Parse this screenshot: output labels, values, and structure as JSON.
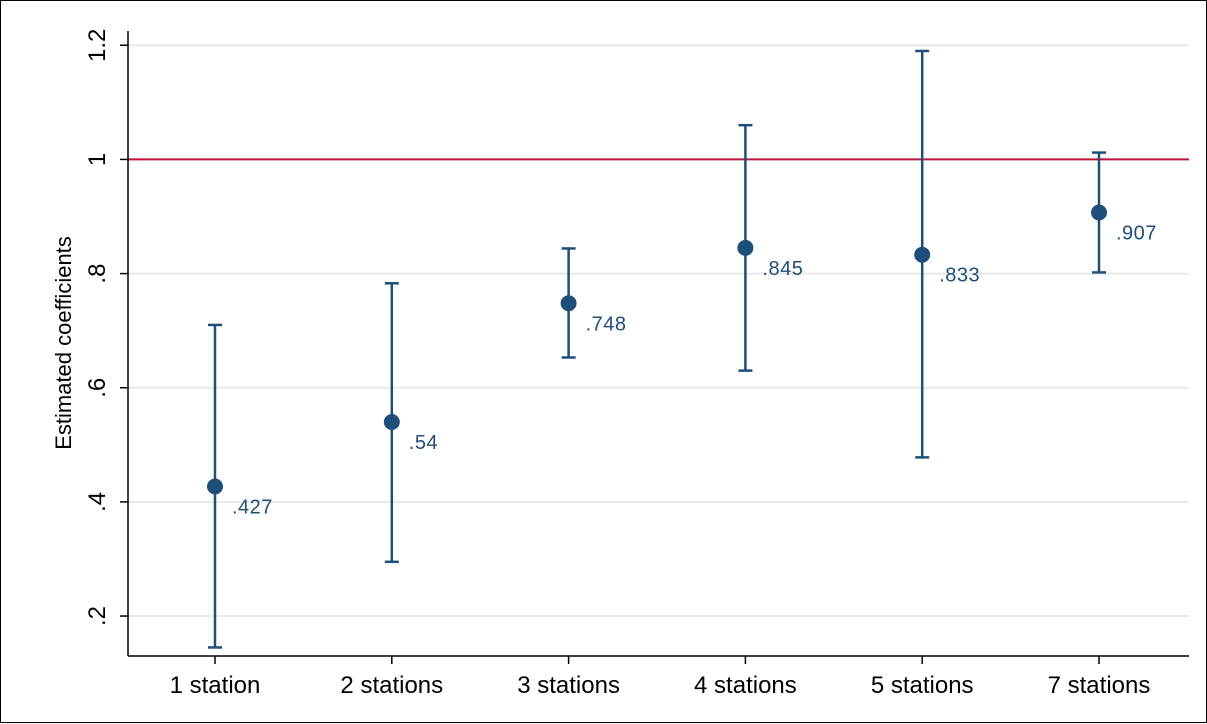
{
  "chart_data": {
    "type": "scatter",
    "title": "",
    "xlabel": "",
    "ylabel": "Estimated coefficients",
    "categories": [
      "1 station",
      "2 stations",
      "3 stations",
      "4 stations",
      "5 stations",
      "7 stations"
    ],
    "estimates": [
      0.427,
      0.54,
      0.748,
      0.845,
      0.833,
      0.907
    ],
    "estimate_labels": [
      ".427",
      ".54",
      ".748",
      ".845",
      ".833",
      ".907"
    ],
    "ci_low": [
      0.145,
      0.295,
      0.653,
      0.63,
      0.478,
      0.802
    ],
    "ci_high": [
      0.71,
      0.783,
      0.844,
      1.06,
      1.19,
      1.012
    ],
    "ylim": [
      0.13,
      1.225
    ],
    "yticks": [
      0.2,
      0.4,
      0.6,
      0.8,
      1.0,
      1.2
    ],
    "ytick_labels": [
      ".2",
      ".4",
      ".6",
      ".8",
      "1",
      "1.2"
    ],
    "reference_line": 1.0,
    "grid": true,
    "colors": {
      "marker": "#1f4e79",
      "error_bar": "#1f4e79",
      "data_label": "#1f4e79",
      "reference_line": "#c0113a",
      "grid": "#e8e8e8"
    }
  }
}
